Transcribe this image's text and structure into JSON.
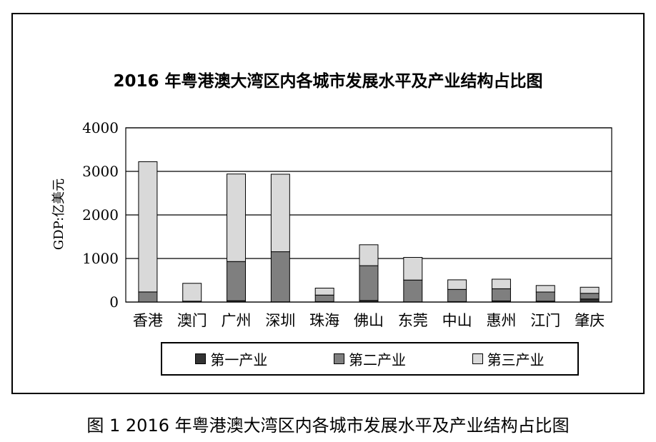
{
  "caption": "图 1   2016 年粤港澳大湾区内各城市发展水平及产业结构占比图",
  "colors": {
    "primary": "#333333",
    "secondary": "#7f7f7f",
    "tertiary": "#d9d9d9",
    "frame": "#000000"
  },
  "chart_data": {
    "type": "bar",
    "stacked": true,
    "title": "2016 年粤港澳大湾区内各城市发展水平及产业结构占比图",
    "xlabel": "",
    "ylabel": "GDP:亿美元",
    "ylim": [
      0,
      4000
    ],
    "yticks": [
      "0",
      "1000",
      "2000",
      "3000",
      "4000"
    ],
    "grid": true,
    "legend_position": "bottom",
    "categories": [
      "香港",
      "澳门",
      "广州",
      "深圳",
      "珠海",
      "佛山",
      "东莞",
      "中山",
      "惠州",
      "江门",
      "肇庆"
    ],
    "series": [
      {
        "name": "第一产业",
        "color": "#333333",
        "values": [
          2,
          0,
          30,
          5,
          10,
          35,
          5,
          10,
          25,
          20,
          70
        ]
      },
      {
        "name": "第二产业",
        "color": "#7f7f7f",
        "values": [
          230,
          20,
          900,
          1150,
          150,
          800,
          500,
          280,
          280,
          210,
          130
        ]
      },
      {
        "name": "第三产业",
        "color": "#d9d9d9",
        "values": [
          2990,
          410,
          2010,
          1780,
          160,
          480,
          520,
          220,
          220,
          150,
          140
        ]
      }
    ]
  }
}
